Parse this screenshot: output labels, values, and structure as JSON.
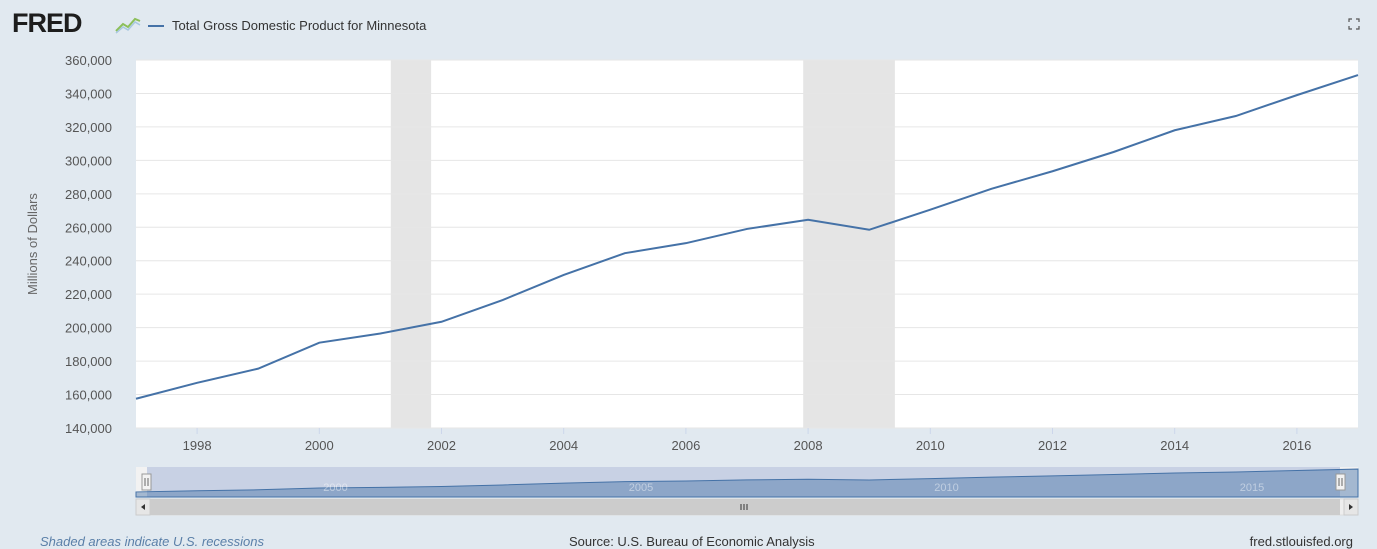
{
  "header": {
    "logo_text": "FRED",
    "series_label": "Total Gross Domestic Product for Minnesota"
  },
  "footer": {
    "recession_note": "Shaded areas indicate U.S. recessions",
    "source": "Source: U.S. Bureau of Economic Analysis",
    "site": "fred.stlouisfed.org"
  },
  "navigator": {
    "tick_labels": [
      "2000",
      "2005",
      "2010",
      "2015"
    ]
  },
  "colors": {
    "background": "#e1e9f0",
    "plot_bg": "#ffffff",
    "line": "#4572a7",
    "recession": "#e5e5e5",
    "grid": "#e6e6e6"
  },
  "chart_data": {
    "type": "line",
    "title": "",
    "xlabel": "",
    "ylabel": "Millions of Dollars",
    "x_ticks": [
      "1998",
      "2000",
      "2002",
      "2004",
      "2006",
      "2008",
      "2010",
      "2012",
      "2014",
      "2016"
    ],
    "y_ticks": [
      "140,000",
      "160,000",
      "180,000",
      "200,000",
      "220,000",
      "240,000",
      "260,000",
      "280,000",
      "300,000",
      "320,000",
      "340,000",
      "360,000"
    ],
    "ylim": [
      140000,
      360000
    ],
    "xlim": [
      1997,
      2017
    ],
    "grid": true,
    "recessions": [
      [
        2001.17,
        2001.83
      ],
      [
        2007.92,
        2009.42
      ]
    ],
    "series": [
      {
        "name": "Total Gross Domestic Product for Minnesota",
        "x": [
          1997,
          1998,
          1999,
          2000,
          2001,
          2002,
          2003,
          2004,
          2005,
          2006,
          2007,
          2008,
          2009,
          2010,
          2011,
          2012,
          2013,
          2014,
          2015,
          2016,
          2017
        ],
        "values": [
          157500,
          167000,
          175500,
          191000,
          196500,
          203500,
          216500,
          231500,
          244500,
          250500,
          259000,
          264500,
          258500,
          270500,
          283000,
          293500,
          305000,
          318000,
          326500,
          339000,
          351000
        ]
      }
    ]
  }
}
